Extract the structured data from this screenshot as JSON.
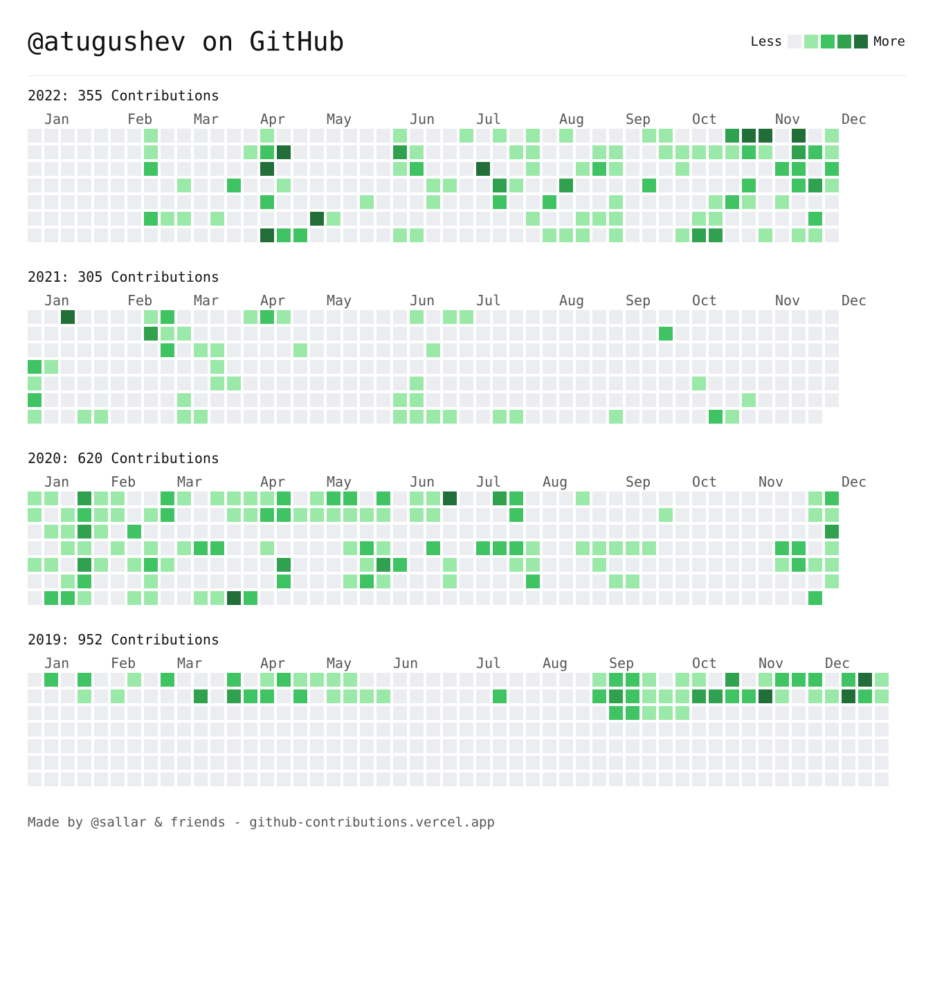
{
  "header": {
    "title": "@atugushev on GitHub",
    "legend_less": "Less",
    "legend_more": "More"
  },
  "colors": {
    "level0": "#ebedf0",
    "level1": "#9be9a8",
    "level2": "#40c463",
    "level3": "#30a14e",
    "level4": "#216e39"
  },
  "footer": {
    "text": "Made by @sallar & friends - github-contributions.vercel.app"
  },
  "chart_data": {
    "type": "heatmap",
    "scale": "contribution level 0-4",
    "years": [
      {
        "year": 2022,
        "label": "2022: 355 Contributions",
        "months": [
          {
            "label": "Jan",
            "week": 1
          },
          {
            "label": "Feb",
            "week": 6
          },
          {
            "label": "Mar",
            "week": 10
          },
          {
            "label": "Apr",
            "week": 14
          },
          {
            "label": "May",
            "week": 18
          },
          {
            "label": "Jun",
            "week": 23
          },
          {
            "label": "Jul",
            "week": 27
          },
          {
            "label": "Aug",
            "week": 32
          },
          {
            "label": "Sep",
            "week": 36
          },
          {
            "label": "Oct",
            "week": 40
          },
          {
            "label": "Nov",
            "week": 45
          },
          {
            "label": "Dec",
            "week": 49
          }
        ],
        "rows": [
          "0000000100000010000000100010101010000110003440401",
          "0000000100000124000000310000011000110011111210321",
          "0000000200000040000000120004001001210001000002202",
          "0000000001002001000000001100310030000200000200231",
          "0000000000000020000010001000200200010000012101000",
          "0000000211010000041000000000001001110000110000020",
          "0000000000000042200000110000000111010001330010110"
        ]
      },
      {
        "year": 2021,
        "label": "2021: 305 Contributions",
        "months": [
          {
            "label": "Jan",
            "week": 1
          },
          {
            "label": "Feb",
            "week": 6
          },
          {
            "label": "Mar",
            "week": 10
          },
          {
            "label": "Apr",
            "week": 14
          },
          {
            "label": "May",
            "week": 18
          },
          {
            "label": "Jun",
            "week": 23
          },
          {
            "label": "Jul",
            "week": 27
          },
          {
            "label": "Aug",
            "week": 32
          },
          {
            "label": "Sep",
            "week": 36
          },
          {
            "label": "Oct",
            "week": 40
          },
          {
            "label": "Nov",
            "week": 45
          },
          {
            "label": "Dec",
            "week": 49
          }
        ],
        "rows": [
          "0040000120000121000000010110000000000000000000000",
          "0000000311000000000000000000000000000020000000000",
          "0000000020110000100000001000000000000000000000000",
          "2100000000010000000000000000000000000000000000000",
          "1000000000011000000000010000000000000000100000000",
          "2000000001000000000000110000000000000000000100000",
          "100110000110000000000011110011000001000002100000"
        ]
      },
      {
        "year": 2020,
        "label": "2020: 620 Contributions",
        "months": [
          {
            "label": "Jan",
            "week": 1
          },
          {
            "label": "Feb",
            "week": 5
          },
          {
            "label": "Mar",
            "week": 9
          },
          {
            "label": "Apr",
            "week": 14
          },
          {
            "label": "May",
            "week": 18
          },
          {
            "label": "Jun",
            "week": 23
          },
          {
            "label": "Jul",
            "week": 27
          },
          {
            "label": "Aug",
            "week": 31
          },
          {
            "label": "Sep",
            "week": 36
          },
          {
            "label": "Oct",
            "week": 40
          },
          {
            "label": "Nov",
            "week": 44
          },
          {
            "label": "Dec",
            "week": 49
          }
        ],
        "rows": [
          "1103110021011112012202011400320001000000000000012",
          "1012110120001122111111011000020000000010000000011",
          "0113102000000000000000000000000000000000000000003",
          "0011010101220010000121002002221001111100000002201",
          "1103101210000003000013200100011000100000000001211",
          "0012000100000002000121000100002000011000000000001",
          "022100110011420000000000000000000000000000000002"
        ]
      },
      {
        "year": 2019,
        "label": "2019: 952 Contributions",
        "months": [
          {
            "label": "Jan",
            "week": 1
          },
          {
            "label": "Feb",
            "week": 5
          },
          {
            "label": "Mar",
            "week": 9
          },
          {
            "label": "Apr",
            "week": 14
          },
          {
            "label": "May",
            "week": 18
          },
          {
            "label": "Jun",
            "week": 22
          },
          {
            "label": "Jul",
            "week": 27
          },
          {
            "label": "Aug",
            "week": 31
          },
          {
            "label": "Sep",
            "week": 35
          },
          {
            "label": "Oct",
            "week": 40
          },
          {
            "label": "Nov",
            "week": 44
          },
          {
            "label": "Dec",
            "week": 48
          }
        ],
        "rows": [
          "0202001020002012111100000000000000122101103012220241",
          "0001010000303220201111000000200000232111332241011421",
          "0000000000000000000000000000000000022111000000000000",
          "0000000000000000000000000000000000000000000000000000",
          "0000000000000000000000000000000000000000000000000000",
          "0000000000000000000000000000000000000000000000000000",
          "0000000000000000000000000000000000000000000000000000"
        ]
      }
    ]
  }
}
